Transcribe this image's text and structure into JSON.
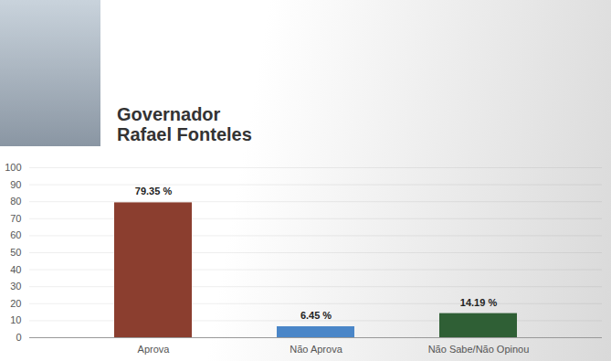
{
  "chart_data": {
    "type": "bar",
    "title": "Governador Rafael Fonteles",
    "categories": [
      "Aprova",
      "Não Aprova",
      "Não Sabe/Não Opinou"
    ],
    "values": [
      79.35,
      6.45,
      14.19
    ],
    "value_labels": [
      "79.35 %",
      "6.45 %",
      "14.19 %"
    ],
    "colors": [
      "#8b3e2f",
      "#4a86c8",
      "#2f5f35"
    ],
    "ylim": [
      0,
      100
    ],
    "yticks": [
      0,
      10,
      20,
      30,
      40,
      50,
      60,
      70,
      80,
      90,
      100
    ],
    "grid": true,
    "data_labels": true
  }
}
